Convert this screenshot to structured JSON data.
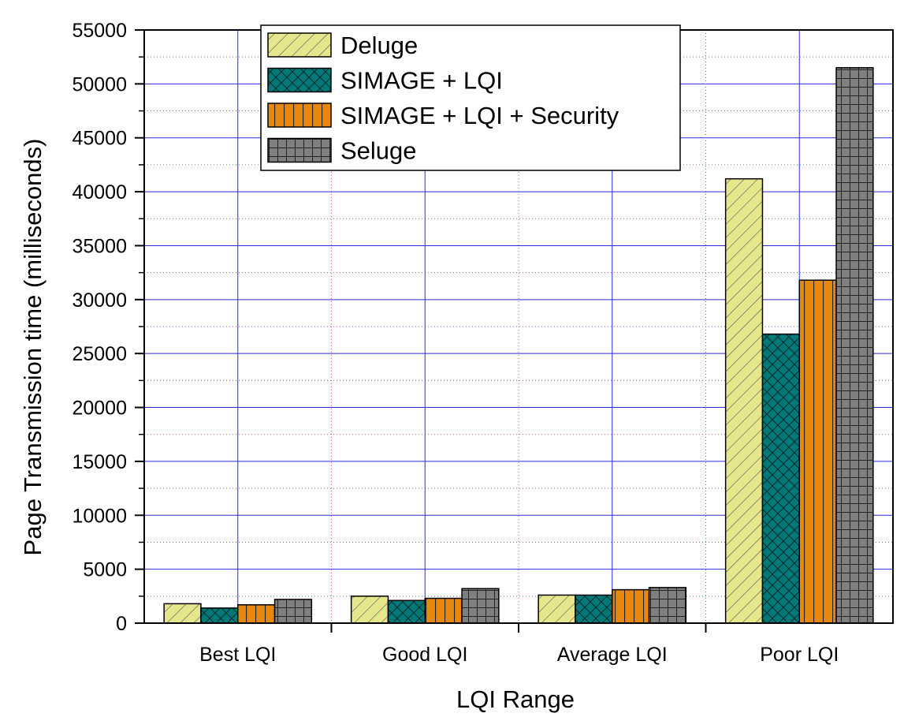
{
  "chart_data": {
    "type": "bar",
    "title": "",
    "xlabel": "LQI Range",
    "ylabel": "Page Transmission time (milliseconds)",
    "categories": [
      "Best LQI",
      "Good LQI",
      "Average LQI",
      "Poor LQI"
    ],
    "ylim": [
      0,
      55000
    ],
    "yticks": [
      0,
      5000,
      10000,
      15000,
      20000,
      25000,
      30000,
      35000,
      40000,
      45000,
      50000,
      55000
    ],
    "ytick_labels": [
      "0",
      "5000",
      "10000",
      "15000",
      "20000",
      "25000",
      "30000",
      "35000",
      "40000",
      "45000",
      "50000",
      "55000"
    ],
    "grid": true,
    "legend_position": "top-left",
    "series": [
      {
        "name": "Deluge",
        "values": [
          1800,
          2500,
          2600,
          41200
        ],
        "color": "#e6e68c",
        "pattern": "diagonal-hatch"
      },
      {
        "name": "SIMAGE + LQI",
        "values": [
          1400,
          2100,
          2600,
          26800
        ],
        "color": "#007a78",
        "pattern": "cross-hatch"
      },
      {
        "name": "SIMAGE + LQI + Security",
        "values": [
          1700,
          2300,
          3100,
          31800
        ],
        "color": "#e8870e",
        "pattern": "vertical-lines"
      },
      {
        "name": "Seluge",
        "values": [
          2200,
          3200,
          3300,
          51500
        ],
        "color": "#7f7f7f",
        "pattern": "grid"
      }
    ]
  }
}
